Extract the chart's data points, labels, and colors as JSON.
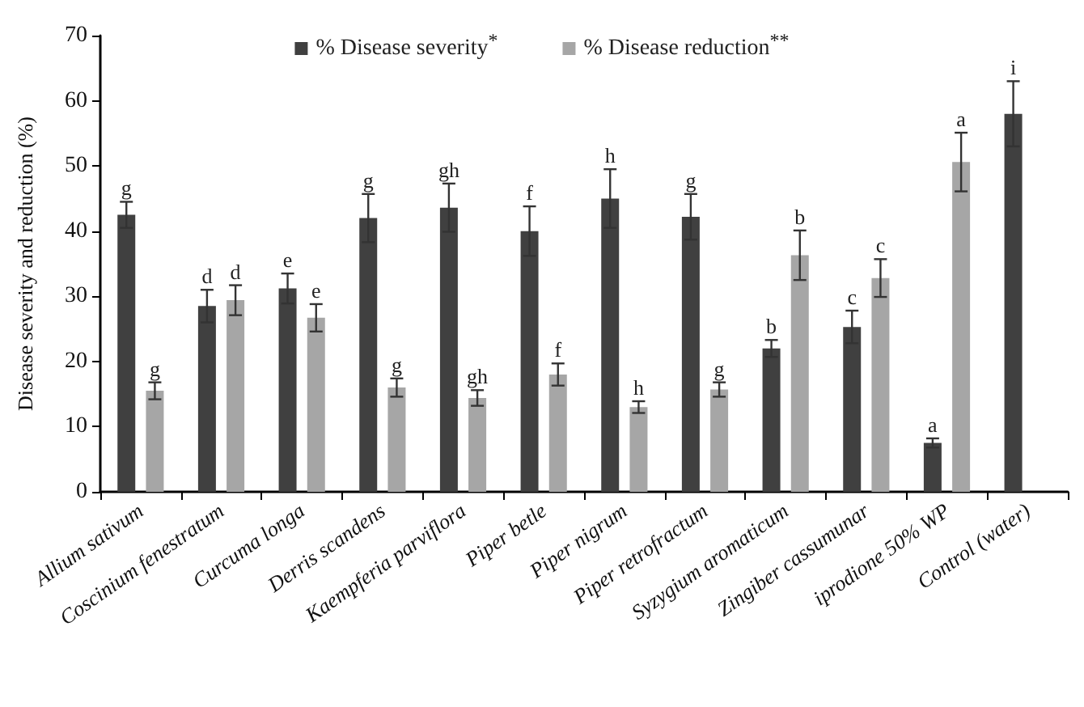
{
  "chart_data": {
    "type": "bar",
    "ylabel": "Disease severity and reduction (%)",
    "categories": [
      "Allium sativum",
      "Coscinium fenestratum",
      "Curcuma longa",
      "Derris scandens",
      "Kaempferia parviflora",
      "Piper betle",
      "Piper nigrum",
      "Piper retrofractum",
      "Syzygium aromaticum",
      "Zingiber cassumunar",
      "iprodione 50% WP",
      "Control (water)"
    ],
    "series": [
      {
        "name": "% Disease severity$^{*}$",
        "color": "#404040",
        "values": [
          42.5,
          28.5,
          31.2,
          42,
          43.6,
          40,
          45,
          42.2,
          22,
          25.3,
          7.5,
          58
        ],
        "errors": [
          2,
          2.5,
          2.3,
          3.7,
          3.7,
          3.8,
          4.5,
          3.5,
          1.3,
          2.5,
          0.7,
          5
        ],
        "value_labels": [
          "g",
          "d",
          "e",
          "g",
          "gh",
          "f",
          "h",
          "g",
          "b",
          "c",
          "a",
          "i"
        ]
      },
      {
        "name": "% Disease reduction$^{**}$",
        "color": "#a6a6a6",
        "values": [
          15.5,
          29.4,
          26.7,
          16,
          14.4,
          18,
          13,
          15.7,
          36.3,
          32.8,
          50.6,
          null
        ],
        "errors": [
          1.3,
          2.3,
          2.1,
          1.4,
          1.2,
          1.7,
          0.9,
          1.1,
          3.8,
          2.9,
          4.5,
          null
        ],
        "value_labels": [
          "g",
          "d",
          "e",
          "g",
          "gh",
          "f",
          "h",
          "g",
          "b",
          "c",
          "a",
          null
        ]
      }
    ],
    "ylim": [
      0,
      70
    ],
    "yticks": [
      0,
      10,
      20,
      30,
      40,
      50,
      60,
      70
    ],
    "grid": false,
    "legend": "top"
  }
}
